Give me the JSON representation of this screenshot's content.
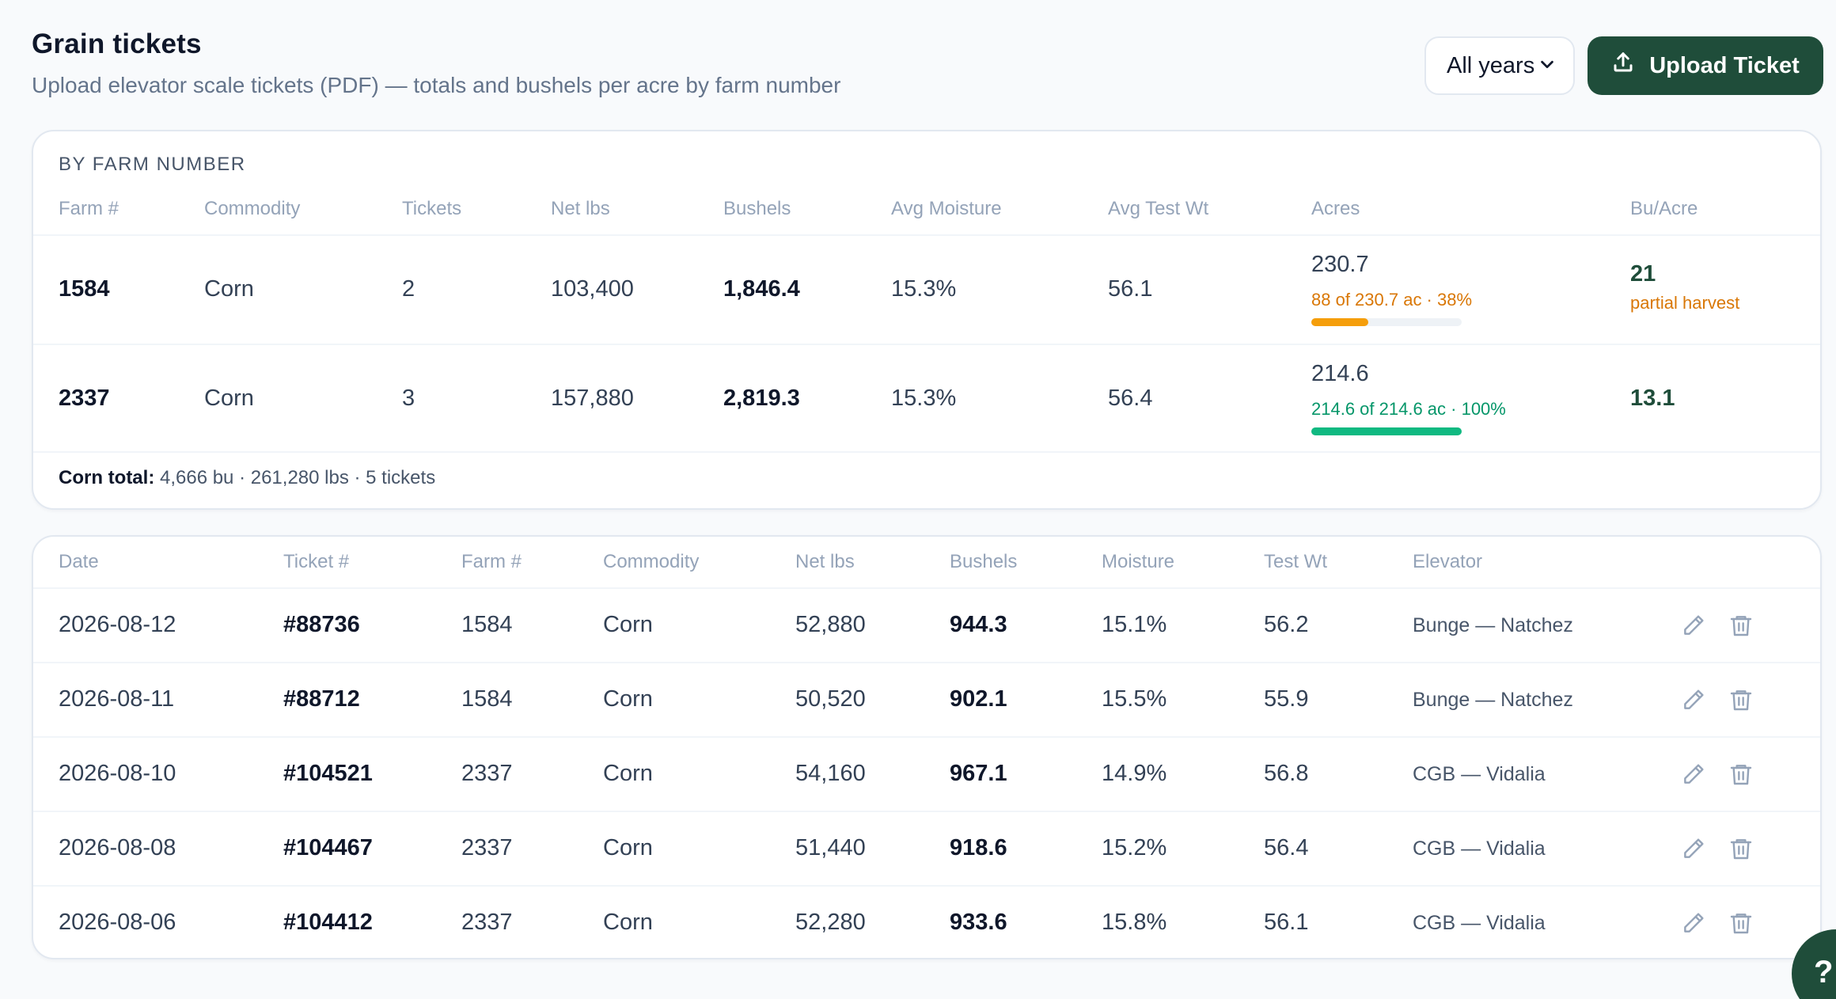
{
  "header": {
    "title": "Grain tickets",
    "subtitle": "Upload elevator scale tickets (PDF) — totals and bushels per acre by farm number",
    "year_filter": "All years",
    "upload_label": "Upload Ticket"
  },
  "summary": {
    "section_label": "BY FARM NUMBER",
    "columns": [
      "Farm #",
      "Commodity",
      "Tickets",
      "Net lbs",
      "Bushels",
      "Avg Moisture",
      "Avg Test Wt",
      "Acres",
      "Bu/Acre"
    ],
    "rows": [
      {
        "farm": "1584",
        "commodity": "Corn",
        "tickets": "2",
        "net_lbs": "103,400",
        "bushels": "1,846.4",
        "avg_moisture": "15.3%",
        "avg_test_wt": "56.1",
        "acres": "230.7",
        "acres_progress_label": "88 of 230.7 ac · 38%",
        "acres_progress": 0.38,
        "progress_color": "#f59e0b",
        "progress_text_color": "#d97706",
        "bu_acre": "21",
        "bu_acre_note": "partial harvest"
      },
      {
        "farm": "2337",
        "commodity": "Corn",
        "tickets": "3",
        "net_lbs": "157,880",
        "bushels": "2,819.3",
        "avg_moisture": "15.3%",
        "avg_test_wt": "56.4",
        "acres": "214.6",
        "acres_progress_label": "214.6 of 214.6 ac · 100%",
        "acres_progress": 1.0,
        "progress_color": "#10b981",
        "progress_text_color": "#059669",
        "bu_acre": "13.1",
        "bu_acre_note": ""
      }
    ],
    "total_label": "Corn total:",
    "total_value": "4,666 bu · 261,280 lbs · 5 tickets"
  },
  "tickets": {
    "columns": [
      "Date",
      "Ticket #",
      "Farm #",
      "Commodity",
      "Net lbs",
      "Bushels",
      "Moisture",
      "Test Wt",
      "Elevator"
    ],
    "rows": [
      {
        "date": "2026-08-12",
        "ticket": "#88736",
        "farm": "1584",
        "commodity": "Corn",
        "net_lbs": "52,880",
        "bushels": "944.3",
        "moisture": "15.1%",
        "test_wt": "56.2",
        "elevator": "Bunge — Natchez"
      },
      {
        "date": "2026-08-11",
        "ticket": "#88712",
        "farm": "1584",
        "commodity": "Corn",
        "net_lbs": "50,520",
        "bushels": "902.1",
        "moisture": "15.5%",
        "test_wt": "55.9",
        "elevator": "Bunge — Natchez"
      },
      {
        "date": "2026-08-10",
        "ticket": "#104521",
        "farm": "2337",
        "commodity": "Corn",
        "net_lbs": "54,160",
        "bushels": "967.1",
        "moisture": "14.9%",
        "test_wt": "56.8",
        "elevator": "CGB — Vidalia"
      },
      {
        "date": "2026-08-08",
        "ticket": "#104467",
        "farm": "2337",
        "commodity": "Corn",
        "net_lbs": "51,440",
        "bushels": "918.6",
        "moisture": "15.2%",
        "test_wt": "56.4",
        "elevator": "CGB — Vidalia"
      },
      {
        "date": "2026-08-06",
        "ticket": "#104412",
        "farm": "2337",
        "commodity": "Corn",
        "net_lbs": "52,280",
        "bushels": "933.6",
        "moisture": "15.8%",
        "test_wt": "56.1",
        "elevator": "CGB — Vidalia"
      }
    ],
    "row_icons": [
      "pencil-icon",
      "trash-icon"
    ]
  },
  "help": {
    "icon": "help-icon",
    "glyph": "?"
  }
}
